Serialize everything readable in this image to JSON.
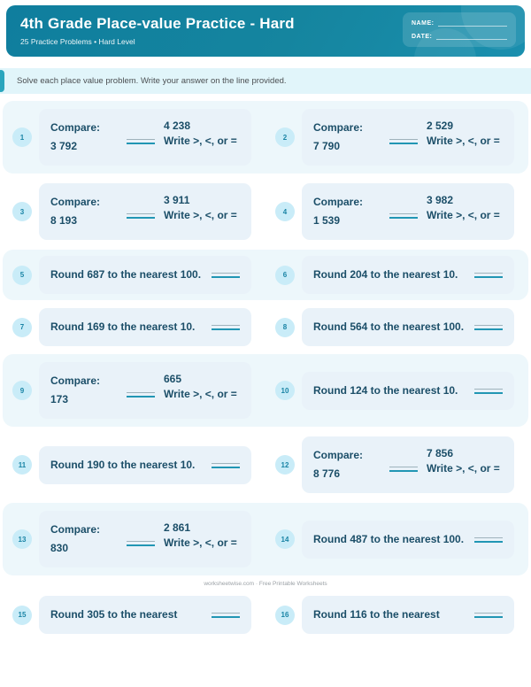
{
  "page": {
    "title": "4th Grade Place-value Practice - Hard",
    "subtitle": "25 Practice Problems • Hard Level",
    "name_label": "NAME:",
    "date_label": "DATE:",
    "instructions": "Solve each place value problem. Write your answer on the line provided.",
    "watermark": "worksheetwise.com · Free Printable Worksheets"
  },
  "labels": {
    "compare_prompt": "Compare:",
    "write_hint": "Write >, <, or ="
  },
  "colors": {
    "header_teal": "#15859f",
    "accent_teal": "#2aa5bd",
    "band_bg": "#edf7fb",
    "card_bg": "#e9f2f9",
    "badge_bg": "#c9ecf8",
    "problem_text": "#1b4e68",
    "answer_line_teal": "#2196b4"
  },
  "problems": [
    {
      "n": "1",
      "type": "compare",
      "a": "3 792",
      "b": "4 238"
    },
    {
      "n": "2",
      "type": "compare",
      "a": "7 790",
      "b": "2 529"
    },
    {
      "n": "3",
      "type": "compare",
      "a": "8 193",
      "b": "3 911"
    },
    {
      "n": "4",
      "type": "compare",
      "a": "1 539",
      "b": "3 982"
    },
    {
      "n": "5",
      "type": "round",
      "text": "Round 687 to the nearest 100."
    },
    {
      "n": "6",
      "type": "round",
      "text": "Round 204 to the nearest 10."
    },
    {
      "n": "7",
      "type": "round",
      "text": "Round 169 to the nearest 10."
    },
    {
      "n": "8",
      "type": "round",
      "text": "Round 564 to the nearest 100."
    },
    {
      "n": "9",
      "type": "compare",
      "a": "173",
      "b": "665"
    },
    {
      "n": "10",
      "type": "round",
      "text": "Round 124 to the nearest 10."
    },
    {
      "n": "11",
      "type": "round",
      "text": "Round 190 to the nearest 10."
    },
    {
      "n": "12",
      "type": "compare",
      "a": "8 776",
      "b": "7 856"
    },
    {
      "n": "13",
      "type": "compare",
      "a": "830",
      "b": "2 861"
    },
    {
      "n": "14",
      "type": "round",
      "text": "Round 487 to the nearest 100."
    },
    {
      "n": "15",
      "type": "round",
      "text": "Round 305 to the nearest"
    },
    {
      "n": "16",
      "type": "round",
      "text": "Round 116 to the nearest"
    }
  ]
}
